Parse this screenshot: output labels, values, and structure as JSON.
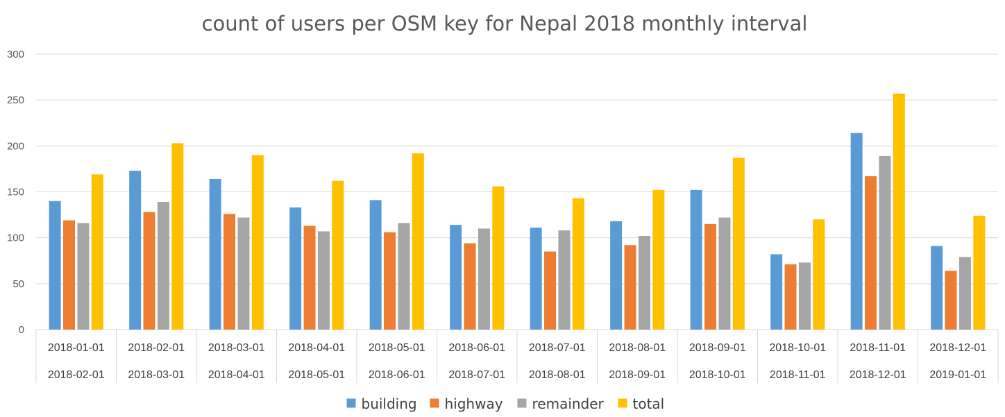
{
  "chart_data": {
    "type": "bar",
    "title": "count of users per OSM key for Nepal 2018 monthly interval",
    "categories": [
      [
        "2018-01-01",
        "2018-02-01"
      ],
      [
        "2018-02-01",
        "2018-03-01"
      ],
      [
        "2018-03-01",
        "2018-04-01"
      ],
      [
        "2018-04-01",
        "2018-05-01"
      ],
      [
        "2018-05-01",
        "2018-06-01"
      ],
      [
        "2018-06-01",
        "2018-07-01"
      ],
      [
        "2018-07-01",
        "2018-08-01"
      ],
      [
        "2018-08-01",
        "2018-09-01"
      ],
      [
        "2018-09-01",
        "2018-10-01"
      ],
      [
        "2018-10-01",
        "2018-11-01"
      ],
      [
        "2018-11-01",
        "2018-12-01"
      ],
      [
        "2018-12-01",
        "2019-01-01"
      ]
    ],
    "series": [
      {
        "name": "building",
        "color": "#5b9bd5",
        "values": [
          140,
          173,
          164,
          133,
          141,
          114,
          111,
          118,
          152,
          82,
          214,
          91
        ]
      },
      {
        "name": "highway",
        "color": "#ed7d31",
        "values": [
          119,
          128,
          126,
          113,
          106,
          94,
          85,
          92,
          115,
          71,
          167,
          64
        ]
      },
      {
        "name": "remainder",
        "color": "#a5a5a5",
        "values": [
          116,
          139,
          122,
          107,
          116,
          110,
          108,
          102,
          122,
          73,
          189,
          79
        ]
      },
      {
        "name": "total",
        "color": "#ffc000",
        "values": [
          169,
          203,
          190,
          162,
          192,
          156,
          143,
          152,
          187,
          120,
          257,
          124
        ]
      }
    ],
    "ylim": [
      0,
      300
    ],
    "yticks": [
      0,
      50,
      100,
      150,
      200,
      250,
      300
    ],
    "xlabel": "",
    "ylabel": "",
    "grid": true,
    "legend_position": "bottom"
  }
}
